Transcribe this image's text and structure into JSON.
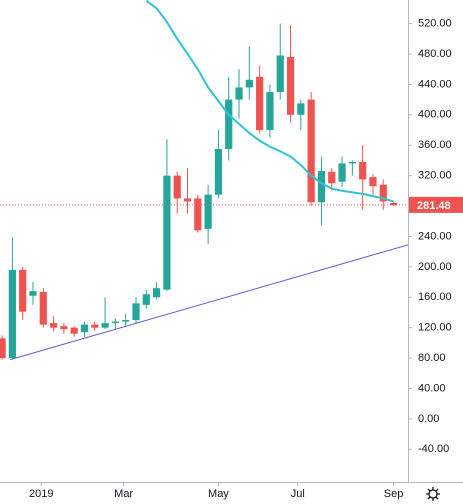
{
  "chart_data": {
    "type": "candlestick",
    "x": [
      0,
      1,
      2,
      3,
      4,
      5,
      6,
      7,
      8,
      9,
      10,
      11,
      12,
      13,
      14,
      15,
      16,
      17,
      18,
      19,
      20,
      21,
      22,
      23,
      24,
      25,
      26,
      27,
      28,
      29,
      30,
      31,
      32,
      33,
      34,
      35,
      36,
      37,
      38
    ],
    "open": [
      106,
      80,
      196,
      162,
      167,
      126,
      122,
      120,
      114,
      124,
      120,
      126,
      128,
      130,
      150,
      160,
      170,
      320,
      290,
      290,
      250,
      295,
      355,
      420,
      436,
      450,
      380,
      430,
      476,
      400,
      420,
      285,
      325,
      312,
      336,
      338,
      318,
      308,
      284
    ],
    "high": [
      110,
      239,
      200,
      180,
      172,
      135,
      126,
      122,
      128,
      128,
      160,
      132,
      138,
      160,
      170,
      180,
      368,
      325,
      330,
      295,
      308,
      380,
      450,
      460,
      490,
      465,
      440,
      520,
      518,
      420,
      430,
      345,
      330,
      345,
      340,
      360,
      322,
      315,
      285
    ],
    "low": [
      78,
      78,
      130,
      150,
      120,
      115,
      112,
      108,
      108,
      116,
      118,
      118,
      122,
      125,
      145,
      158,
      168,
      270,
      270,
      245,
      230,
      290,
      340,
      395,
      420,
      375,
      370,
      420,
      390,
      380,
      280,
      255,
      300,
      305,
      320,
      275,
      295,
      275,
      280
    ],
    "close": [
      80,
      196,
      141,
      168,
      124,
      120,
      118,
      112,
      124,
      120,
      126,
      128,
      130,
      152,
      164,
      172,
      320,
      290,
      286,
      248,
      295,
      355,
      420,
      436,
      446,
      380,
      430,
      478,
      400,
      415,
      285,
      326,
      310,
      336,
      338,
      315,
      306,
      286,
      281
    ],
    "up_color": "#26a69a",
    "down_color": "#ef5350",
    "moving_average": {
      "color": "#2ec4d6",
      "values": [
        null,
        null,
        null,
        null,
        null,
        null,
        null,
        null,
        null,
        null,
        null,
        null,
        null,
        null,
        550,
        540,
        522,
        500,
        480,
        460,
        436,
        418,
        400,
        388,
        376,
        366,
        358,
        352,
        345,
        334,
        320,
        310,
        303,
        300,
        298,
        296,
        293,
        290,
        286
      ]
    },
    "trendline": {
      "color": "#5b5bd6",
      "x": [
        0.8,
        39.4
      ],
      "values": [
        78,
        229
      ]
    },
    "last_price": 281.48,
    "last_price_color": "#ef5350",
    "xlim": [
      -0.2,
      39.4
    ],
    "xticks": [
      {
        "value": 3.8,
        "label": "2019"
      },
      {
        "value": 11.8,
        "label": "Mar"
      },
      {
        "value": 21,
        "label": "May"
      },
      {
        "value": 28.7,
        "label": "Jul"
      },
      {
        "value": 38,
        "label": "Sep"
      }
    ],
    "ylim": [
      -83,
      551
    ],
    "yticks": [
      {
        "value": -40,
        "label": "-40.00"
      },
      {
        "value": 0,
        "label": "0.00"
      },
      {
        "value": 40,
        "label": "40.00"
      },
      {
        "value": 80,
        "label": "80.00"
      },
      {
        "value": 120,
        "label": "120.00"
      },
      {
        "value": 160,
        "label": "160.00"
      },
      {
        "value": 200,
        "label": "200.00"
      },
      {
        "value": 240,
        "label": "240.00"
      },
      {
        "value": 280,
        "label": "280.00"
      },
      {
        "value": 320,
        "label": "320.00"
      },
      {
        "value": 360,
        "label": "360.00"
      },
      {
        "value": 400,
        "label": "400.00"
      },
      {
        "value": 440,
        "label": "440.00"
      },
      {
        "value": 480,
        "label": "480.00"
      },
      {
        "value": 520,
        "label": "520.00"
      }
    ],
    "grid": false
  }
}
